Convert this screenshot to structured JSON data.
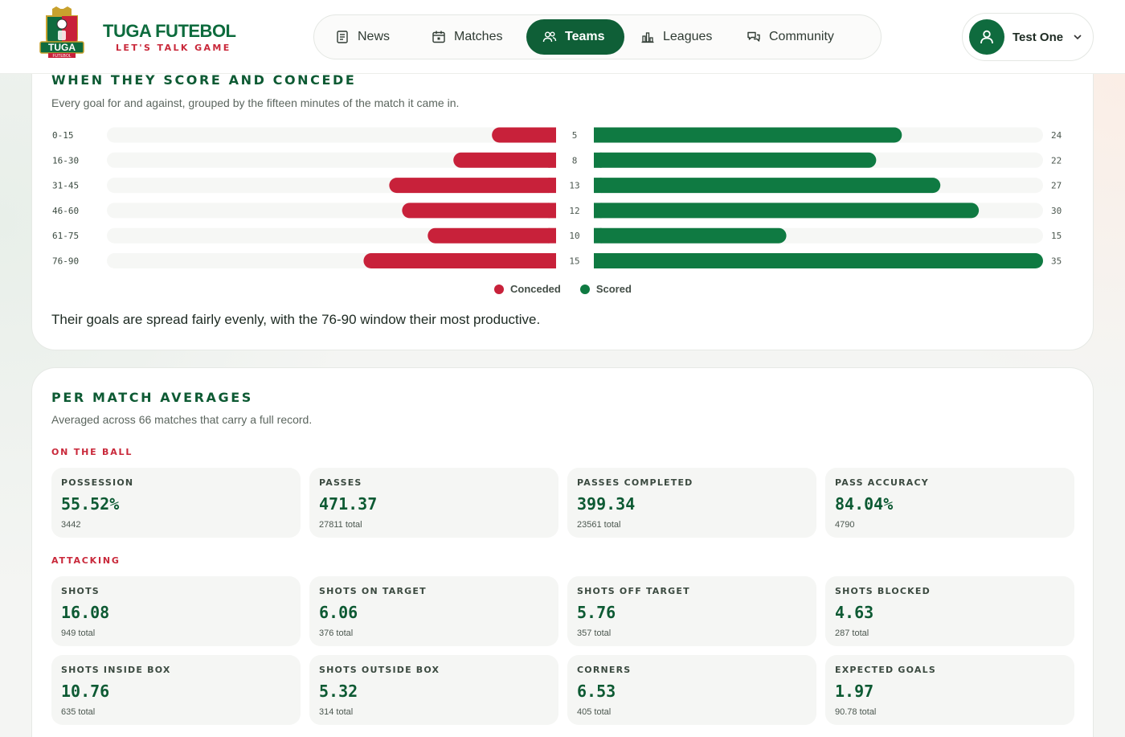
{
  "brand": {
    "title": "TUGA FUTEBOL",
    "tagline": "LET'S TALK GAME",
    "logo_text": "TUGA",
    "logo_ribbon": "FUTEBOL"
  },
  "nav": {
    "items": [
      {
        "label": "News",
        "icon": "newspaper-icon"
      },
      {
        "label": "Matches",
        "icon": "calendar-icon"
      },
      {
        "label": "Teams",
        "icon": "users-icon",
        "active": true
      },
      {
        "label": "Leagues",
        "icon": "bar-chart-icon"
      },
      {
        "label": "Community",
        "icon": "chat-bubbles-icon"
      }
    ]
  },
  "user": {
    "name": "Test One",
    "icon": "user-icon"
  },
  "timing": {
    "title": "WHEN THEY SCORE AND CONCEDE",
    "subtitle": "Every goal for and against, grouped by the fifteen minutes of the match it came in.",
    "insight": "Their goals are spread fairly evenly, with the 76-90 window their most productive.",
    "legend": {
      "conceded": "Conceded",
      "scored": "Scored"
    }
  },
  "chart_data": {
    "type": "bar",
    "orientation": "horizontal-diverging",
    "categories": [
      "0-15",
      "16-30",
      "31-45",
      "46-60",
      "61-75",
      "76-90"
    ],
    "series": [
      {
        "name": "Conceded",
        "values": [
          5,
          8,
          13,
          12,
          10,
          15
        ],
        "color": "#c8213a"
      },
      {
        "name": "Scored",
        "values": [
          24,
          22,
          27,
          30,
          15,
          35
        ],
        "color": "#0f7a42"
      }
    ],
    "legend_position": "bottom-center"
  },
  "averages": {
    "title": "PER MATCH AVERAGES",
    "subtitle": "Averaged across 66 matches that carry a full record.",
    "groups": [
      {
        "label": "ON THE BALL",
        "stats": [
          {
            "name": "POSSESSION",
            "value": "55.52%",
            "total": "3442"
          },
          {
            "name": "PASSES",
            "value": "471.37",
            "total": "27811 total"
          },
          {
            "name": "PASSES COMPLETED",
            "value": "399.34",
            "total": "23561 total"
          },
          {
            "name": "PASS ACCURACY",
            "value": "84.04%",
            "total": "4790"
          }
        ]
      },
      {
        "label": "ATTACKING",
        "stats": [
          {
            "name": "SHOTS",
            "value": "16.08",
            "total": "949 total"
          },
          {
            "name": "SHOTS ON TARGET",
            "value": "6.06",
            "total": "376 total"
          },
          {
            "name": "SHOTS OFF TARGET",
            "value": "5.76",
            "total": "357 total"
          },
          {
            "name": "SHOTS BLOCKED",
            "value": "4.63",
            "total": "287 total"
          },
          {
            "name": "SHOTS INSIDE BOX",
            "value": "10.76",
            "total": "635 total"
          },
          {
            "name": "SHOTS OUTSIDE BOX",
            "value": "5.32",
            "total": "314 total"
          },
          {
            "name": "CORNERS",
            "value": "6.53",
            "total": "405 total"
          },
          {
            "name": "EXPECTED GOALS",
            "value": "1.97",
            "total": "90.78 total"
          }
        ]
      }
    ]
  },
  "colors": {
    "brand_green": "#0f5f37",
    "brand_red": "#c9283a",
    "scored": "#0f7a42",
    "conceded": "#c8213a"
  }
}
